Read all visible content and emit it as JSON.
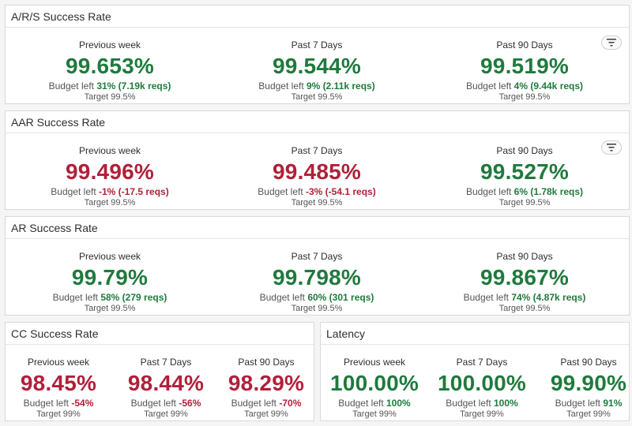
{
  "colors": {
    "good": "#1f7a3d",
    "bad": "#b0203a"
  },
  "panels": [
    {
      "title": "A/R/S Success Rate",
      "has_filter": true,
      "filter_icon": "filter-icon",
      "stats": [
        {
          "label": "Previous week",
          "value": "99.653%",
          "status": "good",
          "budget_prefix": "Budget left",
          "budget_value": "31% (7.19k reqs)",
          "target": "Target 99.5%"
        },
        {
          "label": "Past 7 Days",
          "value": "99.544%",
          "status": "good",
          "budget_prefix": "Budget left",
          "budget_value": "9% (2.11k reqs)",
          "target": "Target 99.5%"
        },
        {
          "label": "Past 90 Days",
          "value": "99.519%",
          "status": "good",
          "budget_prefix": "Budget left",
          "budget_value": "4% (9.44k reqs)",
          "target": "Target 99.5%"
        }
      ]
    },
    {
      "title": "AAR Success Rate",
      "has_filter": true,
      "filter_icon": "filter-icon",
      "stats": [
        {
          "label": "Previous week",
          "value": "99.496%",
          "status": "bad",
          "budget_prefix": "Budget left",
          "budget_value": "-1% (-17.5 reqs)",
          "target": "Target 99.5%"
        },
        {
          "label": "Past 7 Days",
          "value": "99.485%",
          "status": "bad",
          "budget_prefix": "Budget left",
          "budget_value": "-3% (-54.1 reqs)",
          "target": "Target 99.5%"
        },
        {
          "label": "Past 90 Days",
          "value": "99.527%",
          "status": "good",
          "budget_prefix": "Budget left",
          "budget_value": "6% (1.78k reqs)",
          "target": "Target 99.5%"
        }
      ]
    },
    {
      "title": "AR Success Rate",
      "has_filter": false,
      "stats": [
        {
          "label": "Previous week",
          "value": "99.79%",
          "status": "good",
          "budget_prefix": "Budget left",
          "budget_value": "58% (279 reqs)",
          "target": "Target 99.5%"
        },
        {
          "label": "Past 7 Days",
          "value": "99.798%",
          "status": "good",
          "budget_prefix": "Budget left",
          "budget_value": "60% (301 reqs)",
          "target": "Target 99.5%"
        },
        {
          "label": "Past 90 Days",
          "value": "99.867%",
          "status": "good",
          "budget_prefix": "Budget left",
          "budget_value": "74% (4.87k reqs)",
          "target": "Target 99.5%"
        }
      ]
    },
    {
      "title": "CC Success Rate",
      "has_filter": false,
      "stats": [
        {
          "label": "Previous week",
          "value": "98.45%",
          "status": "bad",
          "budget_prefix": "Budget left",
          "budget_value": "-54%",
          "target": "Target 99%"
        },
        {
          "label": "Past 7 Days",
          "value": "98.44%",
          "status": "bad",
          "budget_prefix": "Budget left",
          "budget_value": "-56%",
          "target": "Target 99%"
        },
        {
          "label": "Past 90 Days",
          "value": "98.29%",
          "status": "bad",
          "budget_prefix": "Budget left",
          "budget_value": "-70%",
          "target": "Target 99%"
        }
      ]
    },
    {
      "title": "Latency",
      "has_filter": false,
      "stats": [
        {
          "label": "Previous week",
          "value": "100.00%",
          "status": "good",
          "budget_prefix": "Budget left",
          "budget_value": "100%",
          "target": "Target 99%"
        },
        {
          "label": "Past 7 Days",
          "value": "100.00%",
          "status": "good",
          "budget_prefix": "Budget left",
          "budget_value": "100%",
          "target": "Target 99%"
        },
        {
          "label": "Past 90 Days",
          "value": "99.90%",
          "status": "good",
          "budget_prefix": "Budget left",
          "budget_value": "91%",
          "target": "Target 99%"
        }
      ]
    }
  ]
}
